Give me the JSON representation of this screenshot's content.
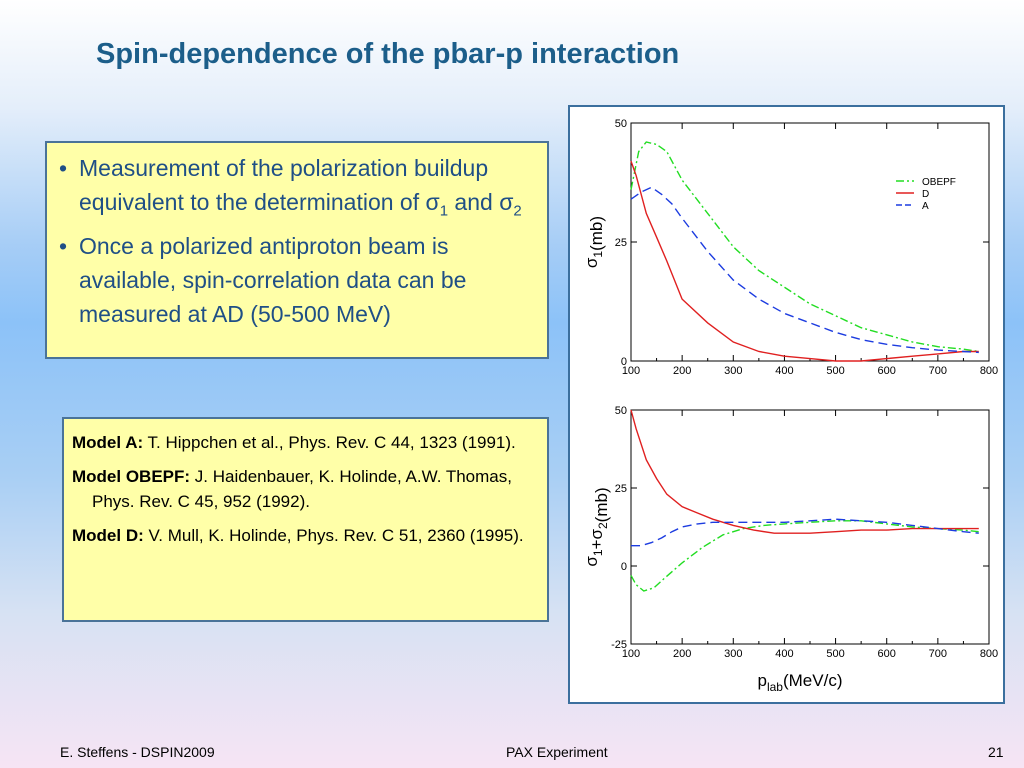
{
  "slide": {
    "title": "Spin-dependence of the pbar-p interaction",
    "bullets": [
      {
        "text": "Measurement of the polarization buildup equivalent to the determination of σ",
        "sub1": "1",
        "mid": " and σ",
        "sub2": "2"
      },
      {
        "text": "Once a polarized antiproton beam is available, spin-correlation data can be measured at AD (50-500 MeV)"
      }
    ],
    "refs": [
      {
        "label": "Model A:",
        "text": " T. Hippchen et al., Phys. Rev. C 44, 1323 (1991)."
      },
      {
        "label": "Model OBEPF:",
        "text": " J. Haidenbauer, K. Holinde, A.W. Thomas, Phys. Rev. C 45, 952 (1992)."
      },
      {
        "label": "Model D:",
        "text": " V. Mull, K. Holinde, Phys. Rev. C 51, 2360 (1995)."
      }
    ],
    "footer": {
      "left": "E. Steffens  -  DSPIN2009",
      "center": "PAX Experiment",
      "right": "21"
    }
  },
  "colors": {
    "title": "#1c5e8a",
    "bullet_text": "#1f4f86",
    "box_fill": "#ffffa8",
    "box_border": "#4a7398",
    "obepf": "#22dd22",
    "d": "#e02020",
    "a": "#1c3ce0"
  },
  "chart_data": [
    {
      "type": "line",
      "ylabel_main": "σ",
      "ylabel_sub": "1",
      "ylabel_unit": "(mb)",
      "xlim": [
        100,
        800
      ],
      "ylim": [
        0,
        50
      ],
      "xticks": [
        "100",
        "200",
        "300",
        "400",
        "500",
        "600",
        "700",
        "800"
      ],
      "yticks": [
        "0",
        "25",
        "50"
      ],
      "legend_position": "top-right",
      "series": [
        {
          "name": "OBEPF",
          "x": [
            100,
            115,
            130,
            150,
            170,
            200,
            250,
            300,
            350,
            400,
            450,
            500,
            550,
            600,
            650,
            700,
            750,
            780
          ],
          "y": [
            36,
            44,
            46,
            45.5,
            44,
            38,
            31,
            24,
            19,
            15.5,
            12,
            9.5,
            7,
            5.5,
            4,
            3,
            2.5,
            2
          ]
        },
        {
          "name": "D",
          "x": [
            100,
            110,
            130,
            150,
            170,
            200,
            250,
            300,
            350,
            400,
            450,
            500,
            550,
            600,
            650,
            700,
            750,
            780
          ],
          "y": [
            42,
            39,
            31,
            26,
            21,
            13,
            8,
            4,
            2,
            1,
            0.5,
            0,
            0,
            0.5,
            1,
            1.5,
            2,
            2
          ]
        },
        {
          "name": "A",
          "x": [
            100,
            120,
            140,
            160,
            180,
            200,
            250,
            300,
            350,
            400,
            450,
            500,
            550,
            600,
            650,
            700,
            750,
            780
          ],
          "y": [
            34,
            35.5,
            36.5,
            35,
            33,
            30,
            23,
            17,
            13,
            10,
            8,
            6,
            4.5,
            3.5,
            2.8,
            2.3,
            2,
            1.8
          ]
        }
      ]
    },
    {
      "type": "line",
      "ylabel_main": "σ",
      "ylabel_sub": "1",
      "ylabel_mid": "+σ",
      "ylabel_sub2": "2",
      "ylabel_unit": "(mb)",
      "xlabel_main": "p",
      "xlabel_sub": "lab",
      "xlabel_unit": "(MeV/c)",
      "xlim": [
        100,
        800
      ],
      "ylim": [
        -25,
        50
      ],
      "xticks": [
        "100",
        "200",
        "300",
        "400",
        "500",
        "600",
        "700",
        "800"
      ],
      "yticks": [
        "-25",
        "0",
        "25",
        "50"
      ],
      "series": [
        {
          "name": "OBEPF",
          "x": [
            100,
            110,
            125,
            145,
            165,
            200,
            240,
            280,
            320,
            360,
            400,
            450,
            500,
            550,
            600,
            650,
            700,
            750,
            780
          ],
          "y": [
            -3,
            -6,
            -8,
            -7,
            -4,
            1,
            6,
            10,
            12,
            13,
            13.5,
            14,
            14.5,
            14.5,
            13.5,
            12.5,
            12,
            11.5,
            11
          ]
        },
        {
          "name": "D",
          "x": [
            100,
            110,
            130,
            150,
            170,
            200,
            230,
            260,
            300,
            340,
            380,
            400,
            450,
            500,
            550,
            600,
            650,
            700,
            750,
            780
          ],
          "y": [
            50,
            44,
            34,
            28,
            23,
            19,
            17,
            15,
            13,
            11.5,
            10.5,
            10.5,
            10.5,
            11,
            11.5,
            11.5,
            12,
            12,
            12,
            12
          ]
        },
        {
          "name": "A",
          "x": [
            100,
            120,
            140,
            160,
            180,
            200,
            230,
            260,
            300,
            350,
            400,
            450,
            500,
            550,
            600,
            650,
            700,
            750,
            780
          ],
          "y": [
            6.5,
            6.5,
            7.5,
            9,
            11,
            12.5,
            13.5,
            14,
            14,
            14,
            14,
            14.5,
            15,
            14.5,
            14,
            13,
            12,
            11,
            10.5
          ]
        }
      ]
    }
  ]
}
